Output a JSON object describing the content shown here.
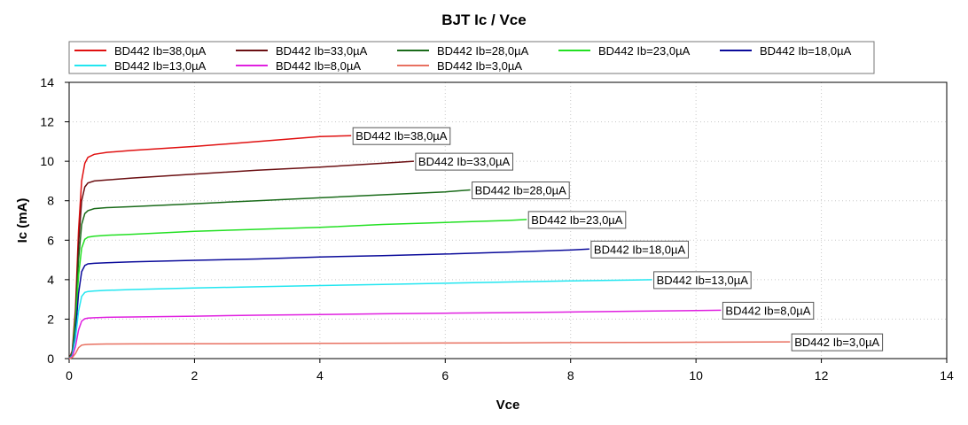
{
  "chart_data": {
    "type": "line",
    "title": "BJT Ic / Vce",
    "xlabel": "Vce",
    "ylabel": "Ic (mA)",
    "xlim": [
      0,
      14
    ],
    "ylim": [
      0,
      14
    ],
    "xticks": [
      0,
      2,
      4,
      6,
      8,
      10,
      12,
      14
    ],
    "yticks": [
      0,
      2,
      4,
      6,
      8,
      10,
      12,
      14
    ],
    "grid": true,
    "legend": "top",
    "series": [
      {
        "name": "BD442 Ib=38,0µA",
        "color": "#e01010",
        "x": [
          0,
          0.05,
          0.1,
          0.15,
          0.2,
          0.25,
          0.3,
          0.4,
          0.6,
          1.0,
          2.0,
          3.0,
          4.0,
          4.5
        ],
        "y": [
          0,
          0.4,
          2.5,
          6.5,
          9.0,
          9.9,
          10.2,
          10.35,
          10.45,
          10.55,
          10.75,
          11.0,
          11.25,
          11.3
        ]
      },
      {
        "name": "BD442 Ib=33,0µA",
        "color": "#6b0f12",
        "x": [
          0,
          0.05,
          0.1,
          0.15,
          0.2,
          0.25,
          0.3,
          0.4,
          0.6,
          1.0,
          2.0,
          3.0,
          4.0,
          5.0,
          5.5
        ],
        "y": [
          0,
          0.35,
          2.2,
          5.8,
          8.0,
          8.7,
          8.9,
          9.0,
          9.05,
          9.15,
          9.35,
          9.55,
          9.7,
          9.9,
          10.0
        ]
      },
      {
        "name": "BD442 Ib=28,0µA",
        "color": "#1a6b1a",
        "x": [
          0,
          0.05,
          0.1,
          0.15,
          0.2,
          0.25,
          0.3,
          0.4,
          0.6,
          1.0,
          2.0,
          3.0,
          4.0,
          5.0,
          6.0,
          6.4
        ],
        "y": [
          0,
          0.3,
          2.0,
          5.0,
          6.8,
          7.35,
          7.5,
          7.6,
          7.65,
          7.7,
          7.85,
          8.0,
          8.15,
          8.3,
          8.45,
          8.55
        ]
      },
      {
        "name": "BD442 Ib=23,0µA",
        "color": "#22e022",
        "x": [
          0,
          0.05,
          0.1,
          0.15,
          0.2,
          0.25,
          0.3,
          0.4,
          0.6,
          1.0,
          2.0,
          3.0,
          4.0,
          5.0,
          6.0,
          7.0,
          7.3
        ],
        "y": [
          0,
          0.25,
          1.7,
          4.2,
          5.6,
          6.05,
          6.15,
          6.2,
          6.25,
          6.3,
          6.45,
          6.55,
          6.65,
          6.8,
          6.9,
          7.0,
          7.05
        ]
      },
      {
        "name": "BD442 Ib=18,0µA",
        "color": "#0a0a9a",
        "x": [
          0,
          0.05,
          0.1,
          0.15,
          0.2,
          0.25,
          0.3,
          0.4,
          0.6,
          1.0,
          2.0,
          3.0,
          4.0,
          5.0,
          6.0,
          7.0,
          8.0,
          8.3
        ],
        "y": [
          0,
          0.2,
          1.3,
          3.3,
          4.4,
          4.72,
          4.8,
          4.83,
          4.86,
          4.9,
          4.98,
          5.05,
          5.15,
          5.22,
          5.3,
          5.4,
          5.5,
          5.55
        ]
      },
      {
        "name": "BD442 Ib=13,0µA",
        "color": "#22e6f0",
        "x": [
          0,
          0.05,
          0.1,
          0.15,
          0.2,
          0.25,
          0.3,
          0.4,
          0.6,
          1.0,
          2.0,
          3.0,
          4.0,
          5.0,
          6.0,
          7.0,
          8.0,
          9.0,
          9.3
        ],
        "y": [
          0,
          0.15,
          1.0,
          2.4,
          3.15,
          3.35,
          3.4,
          3.43,
          3.46,
          3.5,
          3.58,
          3.64,
          3.7,
          3.76,
          3.82,
          3.88,
          3.94,
          3.98,
          4.0
        ]
      },
      {
        "name": "BD442 Ib=8,0µA",
        "color": "#e020e0",
        "x": [
          0,
          0.05,
          0.1,
          0.15,
          0.2,
          0.25,
          0.3,
          0.4,
          0.6,
          1.0,
          2.0,
          3.0,
          4.0,
          5.0,
          6.0,
          7.0,
          8.0,
          9.0,
          10.0,
          10.4
        ],
        "y": [
          0,
          0.1,
          0.6,
          1.45,
          1.9,
          2.02,
          2.05,
          2.07,
          2.09,
          2.11,
          2.15,
          2.2,
          2.23,
          2.27,
          2.3,
          2.33,
          2.36,
          2.4,
          2.43,
          2.45
        ]
      },
      {
        "name": "BD442 Ib=3,0µA",
        "color": "#e87060",
        "x": [
          0,
          0.05,
          0.1,
          0.15,
          0.2,
          0.25,
          0.3,
          0.4,
          0.6,
          1.0,
          2.0,
          3.0,
          4.0,
          5.0,
          6.0,
          7.0,
          8.0,
          9.0,
          10.0,
          11.0,
          11.5
        ],
        "y": [
          0,
          0.05,
          0.25,
          0.55,
          0.68,
          0.71,
          0.72,
          0.73,
          0.74,
          0.745,
          0.75,
          0.76,
          0.77,
          0.78,
          0.79,
          0.8,
          0.81,
          0.82,
          0.83,
          0.84,
          0.85
        ]
      }
    ]
  }
}
